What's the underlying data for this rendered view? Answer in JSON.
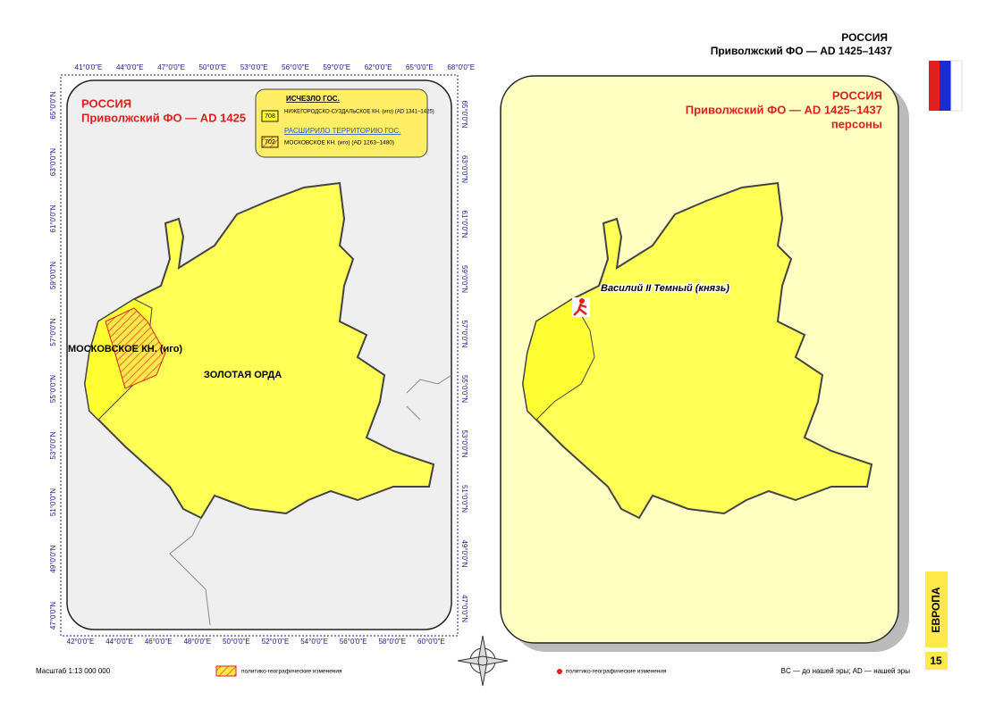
{
  "header": {
    "title": "РОССИЯ",
    "subtitle": "Приволжский ФО — AD 1425–1437"
  },
  "left_map": {
    "title": "РОССИЯ",
    "subtitle": "Приволжский ФО — AD 1425",
    "legend": {
      "heading1": "ИСЧЕЗЛО ГОС.",
      "code1": "708",
      "item1": "НИЖЕГОРОДСКО-СУЗДАЛЬСКОЕ КН. (иго) (AD 1341–1425)",
      "heading2": "РАСШИРИЛО ТЕРРИТОРИЮ ГОС.",
      "code2": "702",
      "item2": "МОСКОВСКОЕ КН. (иго) (AD 1263–1480)"
    },
    "labels": [
      "МОСКОВСКОЕ КН. (иго)",
      "ЗОЛОТАЯ ОРДА"
    ],
    "top_ticks": [
      "41°0'0\"E",
      "44°0'0\"E",
      "47°0'0\"E",
      "50°0'0\"E",
      "53°0'0\"E",
      "56°0'0\"E",
      "59°0'0\"E",
      "62°0'0\"E",
      "65°0'0\"E",
      "68°0'0\"E"
    ],
    "bottom_ticks": [
      "42°0'0\"E",
      "44°0'0\"E",
      "46°0'0\"E",
      "48°0'0\"E",
      "50°0'0\"E",
      "52°0'0\"E",
      "54°0'0\"E",
      "56°0'0\"E",
      "58°0'0\"E",
      "60°0'0\"E"
    ],
    "left_ticks": [
      "65°0'0\"N",
      "63°0'0\"N",
      "61°0'0\"N",
      "59°0'0\"N",
      "57°0'0\"N",
      "55°0'0\"N",
      "53°0'0\"N",
      "51°0'0\"N",
      "49°0'0\"N",
      "47°0'0\"N"
    ],
    "right_ticks": [
      "65°0'0\"N",
      "63°0'0\"N",
      "61°0'0\"N",
      "59°0'0\"N",
      "57°0'0\"N",
      "55°0'0\"N",
      "53°0'0\"N",
      "51°0'0\"N",
      "49°0'0\"N",
      "47°0'0\"N"
    ]
  },
  "right_map": {
    "title": "РОССИЯ",
    "subtitle": "Приволжский ФО — AD 1425–1437",
    "category": "персоны",
    "person": "Василий II Темный (князь)"
  },
  "side": {
    "region": "ЕВРОПА",
    "page": "15"
  },
  "footer": {
    "scale": "Масштаб 1:13 000 000",
    "legend_left": "политико-географические изменения",
    "legend_right": "политико-географические изменения",
    "note": "BC — до нашей эры; AD — нашей эры"
  }
}
